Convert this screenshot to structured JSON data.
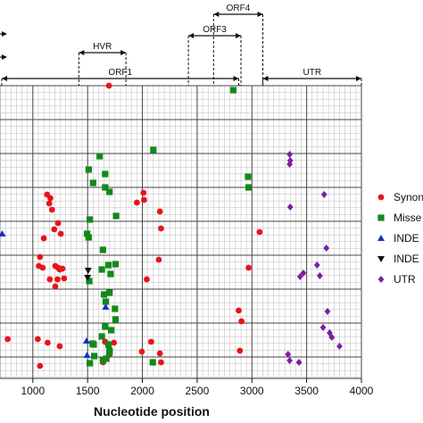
{
  "chart_data": {
    "type": "scatter",
    "title": "",
    "xlabel": "Nucleotide position",
    "ylabel": "",
    "xlim": [
      700,
      4000
    ],
    "xticks": [
      1000,
      1500,
      2000,
      2500,
      3000,
      3500,
      4000
    ],
    "xtick_labels": [
      "1000",
      "1500",
      "2000",
      "2500",
      "3000",
      "3500",
      "4000"
    ],
    "grid": true,
    "legend_position": "right",
    "regions": [
      {
        "name": "ORF1",
        "start": 700,
        "end": 2880,
        "level": 0
      },
      {
        "name": "HVR",
        "start": 1420,
        "end": 1850,
        "level": 1
      },
      {
        "name": "ORF3",
        "start": 2420,
        "end": 2900,
        "level": 2
      },
      {
        "name": "ORF4",
        "start": 2650,
        "end": 3100,
        "level": 3
      },
      {
        "name": "UTR",
        "start": 3100,
        "end": 4000,
        "level": 0
      }
    ],
    "series": [
      {
        "name": "Synonymous",
        "marker": "circle",
        "color": "#e8141b",
        "points": [
          [
            1695,
            96
          ],
          [
            1130,
            218
          ],
          [
            1150,
            228
          ],
          [
            1175,
            235
          ],
          [
            1160,
            222
          ],
          [
            1230,
            250
          ],
          [
            1195,
            257
          ],
          [
            1255,
            262
          ],
          [
            1100,
            267
          ],
          [
            1065,
            288
          ],
          [
            1055,
            298
          ],
          [
            1090,
            300
          ],
          [
            1205,
            298
          ],
          [
            1230,
            300
          ],
          [
            1245,
            302
          ],
          [
            1270,
            301
          ],
          [
            1285,
            312
          ],
          [
            1155,
            313
          ],
          [
            1225,
            313
          ],
          [
            1205,
            321
          ],
          [
            1065,
            410
          ],
          [
            1245,
            388
          ],
          [
            1135,
            384
          ],
          [
            1045,
            380
          ],
          [
            1660,
            383
          ],
          [
            1660,
            383
          ],
          [
            1740,
            384
          ],
          [
            1695,
            398
          ],
          [
            1640,
            406
          ],
          [
            1950,
            227
          ],
          [
            2015,
            224
          ],
          [
            2160,
            237
          ],
          [
            2170,
            256
          ],
          [
            2150,
            291
          ],
          [
            2040,
            313
          ],
          [
            1995,
            394
          ],
          [
            2080,
            383
          ],
          [
            2160,
            396
          ],
          [
            2170,
            406
          ],
          [
            3070,
            260
          ],
          [
            2970,
            300
          ],
          [
            2880,
            348
          ],
          [
            2905,
            360
          ],
          [
            2890,
            393
          ],
          [
            770,
            380
          ],
          [
            2010,
            216
          ]
        ]
      },
      {
        "name": "Missense",
        "marker": "square",
        "color": "#12891a",
        "points": [
          [
            2830,
            101
          ],
          [
            1510,
            190
          ],
          [
            1610,
            175
          ],
          [
            2100,
            168
          ],
          [
            1660,
            195
          ],
          [
            1550,
            205
          ],
          [
            1660,
            210
          ],
          [
            1700,
            215
          ],
          [
            1760,
            242
          ],
          [
            1520,
            246
          ],
          [
            1495,
            262
          ],
          [
            1510,
            266
          ],
          [
            1640,
            280
          ],
          [
            1690,
            297
          ],
          [
            1755,
            296
          ],
          [
            1630,
            302
          ],
          [
            1710,
            307
          ],
          [
            1515,
            315
          ],
          [
            1700,
            328
          ],
          [
            1650,
            330
          ],
          [
            1665,
            338
          ],
          [
            1750,
            346
          ],
          [
            1755,
            358
          ],
          [
            1660,
            366
          ],
          [
            1715,
            370
          ],
          [
            1630,
            377
          ],
          [
            1555,
            386
          ],
          [
            1690,
            386
          ],
          [
            1700,
            395
          ],
          [
            1640,
            404
          ],
          [
            1520,
            407
          ],
          [
            1560,
            399
          ],
          [
            1670,
            402
          ],
          [
            2095,
            406
          ],
          [
            2965,
            198
          ],
          [
            2970,
            210
          ],
          [
            1545,
            385
          ],
          [
            1700,
            393
          ]
        ]
      },
      {
        "name": "INDEL (insertion)",
        "marker": "triangle-up",
        "color": "#1a2fbf",
        "points": [
          [
            1490,
            382
          ],
          [
            1665,
            344
          ],
          [
            1495,
            398
          ],
          [
            720,
            262
          ]
        ]
      },
      {
        "name": "INDEL (deletion)",
        "marker": "triangle-down",
        "color": "#111111",
        "points": [
          [
            1505,
            303
          ],
          [
            1500,
            311
          ]
        ]
      },
      {
        "name": "UTR",
        "marker": "diamond",
        "color": "#7b1fa2",
        "points": [
          [
            3345,
            173
          ],
          [
            3350,
            180
          ],
          [
            3345,
            184
          ],
          [
            3660,
            218
          ],
          [
            3350,
            232
          ],
          [
            3680,
            278
          ],
          [
            3595,
            297
          ],
          [
            3620,
            309
          ],
          [
            3440,
            310
          ],
          [
            3470,
            306
          ],
          [
            3650,
            367
          ],
          [
            3710,
            373
          ],
          [
            3730,
            378
          ],
          [
            3800,
            388
          ],
          [
            3330,
            397
          ],
          [
            3345,
            404
          ],
          [
            3430,
            406
          ],
          [
            3690,
            349
          ]
        ]
      }
    ],
    "legend": [
      {
        "label": "Synony",
        "marker": "circle",
        "color": "#e8141b"
      },
      {
        "label": "Misse",
        "marker": "square",
        "color": "#12891a"
      },
      {
        "label": "INDE",
        "marker": "triangle-up",
        "color": "#1a2fbf"
      },
      {
        "label": "INDE",
        "marker": "triangle-down",
        "color": "#111111"
      },
      {
        "label": "UTR",
        "marker": "diamond",
        "color": "#7b1fa2"
      }
    ]
  }
}
